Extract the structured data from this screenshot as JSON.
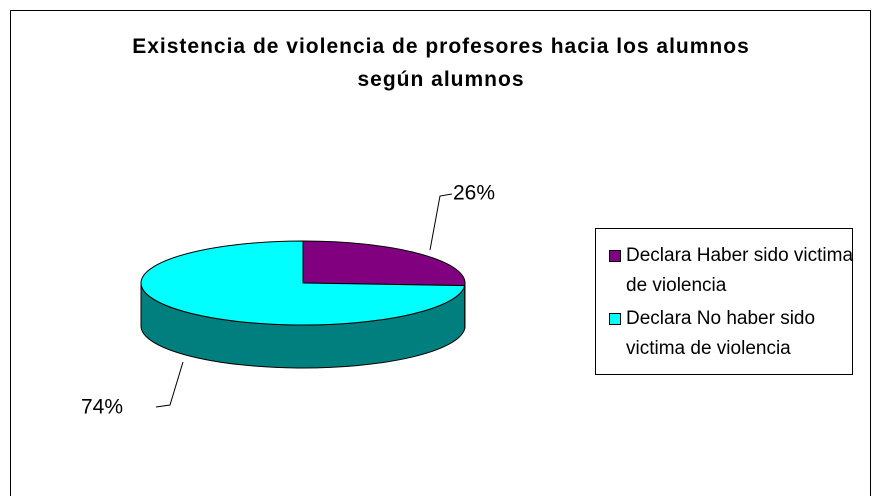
{
  "chart_data": {
    "type": "pie3d",
    "title": "Existencia de violencia de profesores hacia los alumnos según alumnos",
    "categories": [
      "Declara Haber sido victima de violencia",
      "Declara No haber sido victima de violencia"
    ],
    "values": [
      26,
      74
    ],
    "value_labels": [
      "26%",
      "74%"
    ],
    "colors": [
      "#800080",
      "#00ffff"
    ],
    "legend": "right"
  }
}
